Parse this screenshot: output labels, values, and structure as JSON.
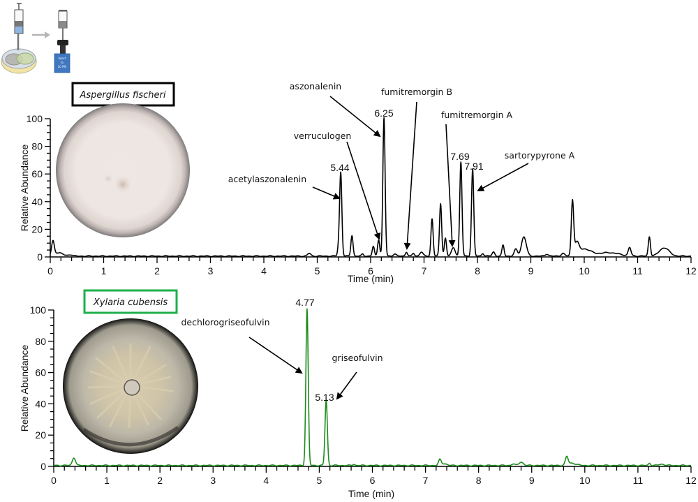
{
  "schematic": {
    "inject_box_lines": [
      "Inject",
      "to",
      "LC-MS"
    ],
    "arrow_color": "#b5b5b5",
    "syringe_fill_color": "#8fb6e0",
    "box_color": "#3f77c0"
  },
  "panels": [
    {
      "species": "Aspergillus fischeri",
      "species_box_color": "#000000",
      "line_color": "#000000",
      "rt_labels": [
        "5.44",
        "6.25",
        "7.69",
        "7.91"
      ],
      "compounds": [
        "acetylaszonalenin",
        "verruculogen",
        "aszonalenin",
        "fumitremorgin B",
        "fumitremorgin A",
        "sartorypyrone A"
      ]
    },
    {
      "species": "Xylaria cubensis",
      "species_box_color": "#1db04b",
      "line_color": "#1e8c1e",
      "rt_labels": [
        "4.77",
        "5.13"
      ],
      "compounds": [
        "dechlorogriseofulvin",
        "griseofulvin"
      ]
    }
  ],
  "chart_data": [
    {
      "type": "line",
      "title": "Aspergillus fischeri",
      "xlabel": "Time (min)",
      "ylabel": "Relative Abundance",
      "xlim": [
        0,
        12
      ],
      "ylim": [
        0,
        100
      ],
      "x_ticks": [
        0,
        1,
        2,
        3,
        4,
        5,
        6,
        7,
        8,
        9,
        10,
        11,
        12
      ],
      "y_ticks": [
        0,
        20,
        40,
        60,
        80,
        100
      ],
      "grid": false,
      "color": "#000000",
      "peaks": [
        {
          "rt": 0.05,
          "height": 10,
          "width": 0.025
        },
        {
          "rt": 0.15,
          "height": 2.5,
          "width": 0.08
        },
        {
          "rt": 0.38,
          "height": 1,
          "width": 0.04
        },
        {
          "rt": 4.85,
          "height": 2,
          "width": 0.03
        },
        {
          "rt": 5.4,
          "height": 6,
          "width": 0.02
        },
        {
          "rt": 5.44,
          "height": 60,
          "width": 0.021
        },
        {
          "rt": 5.65,
          "height": 15,
          "width": 0.02
        },
        {
          "rt": 5.85,
          "height": 1.5,
          "width": 0.02
        },
        {
          "rt": 6.05,
          "height": 7,
          "width": 0.02
        },
        {
          "rt": 6.15,
          "height": 12,
          "width": 0.02
        },
        {
          "rt": 6.25,
          "height": 100,
          "width": 0.021
        },
        {
          "rt": 6.45,
          "height": 1.5,
          "width": 0.03
        },
        {
          "rt": 6.67,
          "height": 3,
          "width": 0.02
        },
        {
          "rt": 6.8,
          "height": 2,
          "width": 0.02
        },
        {
          "rt": 6.95,
          "height": 3,
          "width": 0.03
        },
        {
          "rt": 7.15,
          "height": 27,
          "width": 0.02
        },
        {
          "rt": 7.31,
          "height": 38,
          "width": 0.02
        },
        {
          "rt": 7.4,
          "height": 13,
          "width": 0.02
        },
        {
          "rt": 7.55,
          "height": 6,
          "width": 0.035
        },
        {
          "rt": 7.69,
          "height": 68,
          "width": 0.021
        },
        {
          "rt": 7.91,
          "height": 63,
          "width": 0.021
        },
        {
          "rt": 8.1,
          "height": 2,
          "width": 0.02
        },
        {
          "rt": 8.3,
          "height": 3,
          "width": 0.025
        },
        {
          "rt": 8.48,
          "height": 8,
          "width": 0.02
        },
        {
          "rt": 8.72,
          "height": 5,
          "width": 0.03
        },
        {
          "rt": 8.87,
          "height": 14,
          "width": 0.045
        },
        {
          "rt": 9.3,
          "height": 1.5,
          "width": 0.03
        },
        {
          "rt": 9.6,
          "height": 2,
          "width": 0.03
        },
        {
          "rt": 9.78,
          "height": 39,
          "width": 0.022
        },
        {
          "rt": 9.86,
          "height": 8,
          "width": 0.04
        },
        {
          "rt": 10.0,
          "height": 5,
          "width": 0.12
        },
        {
          "rt": 10.45,
          "height": 2.5,
          "width": 0.2
        },
        {
          "rt": 10.85,
          "height": 6,
          "width": 0.025
        },
        {
          "rt": 11.22,
          "height": 14,
          "width": 0.02
        },
        {
          "rt": 11.5,
          "height": 6,
          "width": 0.09
        }
      ],
      "annotations": [
        {
          "rt": 5.44,
          "rt_label": "5.44",
          "compound": "acetylaszonalenin"
        },
        {
          "rt": 6.15,
          "compound": "verruculogen"
        },
        {
          "rt": 6.25,
          "rt_label": "6.25",
          "compound": "aszonalenin"
        },
        {
          "rt": 6.67,
          "compound": "fumitremorgin B"
        },
        {
          "rt": 7.55,
          "compound": "fumitremorgin A"
        },
        {
          "rt": 7.69,
          "rt_label": "7.69"
        },
        {
          "rt": 7.91,
          "rt_label": "7.91",
          "compound": "sartorypyrone A"
        }
      ]
    },
    {
      "type": "line",
      "title": "Xylaria cubensis",
      "xlabel": "Time (min)",
      "ylabel": "Relative Abundance",
      "xlim": [
        0,
        12
      ],
      "ylim": [
        0,
        100
      ],
      "x_ticks": [
        0,
        1,
        2,
        3,
        4,
        5,
        6,
        7,
        8,
        9,
        10,
        11,
        12
      ],
      "y_ticks": [
        0,
        20,
        40,
        60,
        80,
        100
      ],
      "grid": false,
      "color": "#1e8c1e",
      "peaks": [
        {
          "rt": 0.38,
          "height": 5,
          "width": 0.03
        },
        {
          "rt": 4.77,
          "height": 100,
          "width": 0.022
        },
        {
          "rt": 5.13,
          "height": 42,
          "width": 0.022
        },
        {
          "rt": 5.65,
          "height": 0.8,
          "width": 0.02
        },
        {
          "rt": 7.27,
          "height": 3.5,
          "width": 0.025
        },
        {
          "rt": 7.35,
          "height": 1.2,
          "width": 0.05
        },
        {
          "rt": 8.65,
          "height": 1,
          "width": 0.03
        },
        {
          "rt": 8.8,
          "height": 2.2,
          "width": 0.04
        },
        {
          "rt": 9.66,
          "height": 5,
          "width": 0.025
        },
        {
          "rt": 9.75,
          "height": 1.5,
          "width": 0.08
        },
        {
          "rt": 11.22,
          "height": 1.5,
          "width": 0.02
        },
        {
          "rt": 11.45,
          "height": 0.8,
          "width": 0.05
        }
      ],
      "annotations": [
        {
          "rt": 4.77,
          "rt_label": "4.77",
          "compound": "dechlorogriseofulvin"
        },
        {
          "rt": 5.13,
          "rt_label": "5.13",
          "compound": "griseofulvin"
        }
      ]
    }
  ]
}
